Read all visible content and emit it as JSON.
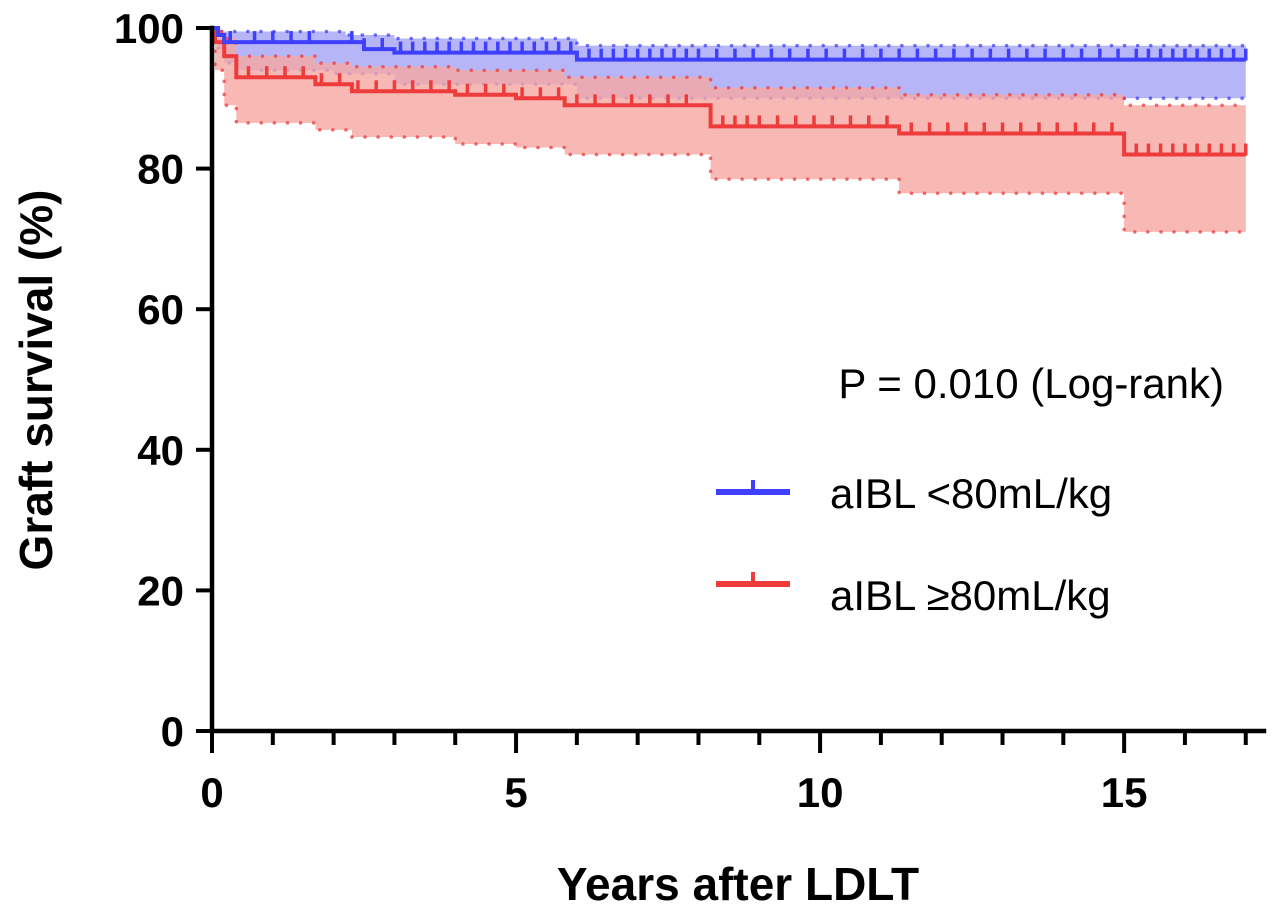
{
  "chart_data": {
    "type": "line",
    "subtype": "kaplan-meier",
    "title": "",
    "xlabel": "Years after LDLT",
    "ylabel": "Graft survival (%)",
    "xlim": [
      0,
      17.3
    ],
    "ylim": [
      0,
      100
    ],
    "xticks": [
      0,
      5,
      10,
      15
    ],
    "xticklabels": [
      "0",
      "5",
      "10",
      "15"
    ],
    "x_minor_step": 1,
    "yticks": [
      0,
      20,
      40,
      60,
      80,
      100
    ],
    "yticklabels": [
      "0",
      "20",
      "40",
      "60",
      "80",
      "100"
    ],
    "grid": false,
    "legend_position": "right",
    "annotation": "P = 0.010 (Log-rank)",
    "series": [
      {
        "name": "aIBL <80mL/kg",
        "color": "#3f3fff",
        "ci_fill": "#9c9cf6",
        "survival": [
          [
            0,
            100
          ],
          [
            0.1,
            99
          ],
          [
            0.2,
            98
          ],
          [
            2.2,
            98
          ],
          [
            2.5,
            97
          ],
          [
            3.0,
            96.5
          ],
          [
            6.0,
            95.5
          ],
          [
            15.0,
            95.5
          ],
          [
            17.0,
            95.5
          ]
        ],
        "ci_upper": [
          [
            0,
            100
          ],
          [
            0.1,
            99.5
          ],
          [
            0.2,
            99.5
          ],
          [
            2.2,
            99
          ],
          [
            3.0,
            98.5
          ],
          [
            6.0,
            97.5
          ],
          [
            17.0,
            97.5
          ]
        ],
        "ci_lower": [
          [
            0,
            100
          ],
          [
            0.1,
            97
          ],
          [
            0.2,
            95
          ],
          [
            0.4,
            94
          ],
          [
            1.0,
            94
          ],
          [
            2.0,
            93.5
          ],
          [
            3.0,
            92
          ],
          [
            6.0,
            90
          ],
          [
            17.0,
            89.5
          ]
        ],
        "censored": [
          0.3,
          0.7,
          1.0,
          1.3,
          1.6,
          2.3,
          2.5,
          2.8,
          3.1,
          3.3,
          3.5,
          3.7,
          3.9,
          4.1,
          4.3,
          4.5,
          4.7,
          4.9,
          5.1,
          5.3,
          5.5,
          5.7,
          5.9,
          6.2,
          6.4,
          6.6,
          6.8,
          7.0,
          7.2,
          7.4,
          7.6,
          7.8,
          8.0,
          8.3,
          8.6,
          8.9,
          9.2,
          9.5,
          9.8,
          10.1,
          10.4,
          10.7,
          11.0,
          11.3,
          11.6,
          11.9,
          12.2,
          12.5,
          12.8,
          13.1,
          13.4,
          13.7,
          14.0,
          14.3,
          14.6,
          14.9,
          15.2,
          15.4,
          15.6,
          15.8,
          16.0,
          16.2,
          16.4,
          16.6,
          16.8,
          17.0
        ]
      },
      {
        "name": "aIBL ≥80mL/kg",
        "color": "#ee3b3b",
        "ci_fill": "#f6a8a3",
        "survival": [
          [
            0,
            100
          ],
          [
            0.05,
            98
          ],
          [
            0.2,
            96
          ],
          [
            0.4,
            93
          ],
          [
            1.7,
            92
          ],
          [
            2.3,
            91
          ],
          [
            4.0,
            90.5
          ],
          [
            5.0,
            90
          ],
          [
            5.8,
            89
          ],
          [
            8.2,
            86
          ],
          [
            11.3,
            85
          ],
          [
            15.0,
            82
          ],
          [
            17.0,
            82
          ]
        ],
        "ci_upper": [
          [
            0,
            100
          ],
          [
            0.05,
            99.5
          ],
          [
            0.2,
            98.5
          ],
          [
            0.4,
            96
          ],
          [
            1.7,
            95
          ],
          [
            2.3,
            94.5
          ],
          [
            4.0,
            94
          ],
          [
            5.8,
            93
          ],
          [
            8.2,
            91.5
          ],
          [
            11.3,
            90.5
          ],
          [
            15.0,
            89
          ],
          [
            17.0,
            89
          ]
        ],
        "ci_lower": [
          [
            0,
            100
          ],
          [
            0.05,
            94
          ],
          [
            0.2,
            89
          ],
          [
            0.4,
            86.5
          ],
          [
            1.7,
            85.5
          ],
          [
            2.3,
            84.5
          ],
          [
            4.0,
            83.5
          ],
          [
            5.0,
            83
          ],
          [
            5.8,
            82
          ],
          [
            8.2,
            78.5
          ],
          [
            11.3,
            76.5
          ],
          [
            15.0,
            71
          ],
          [
            17.0,
            71
          ]
        ],
        "censored": [
          0.6,
          0.9,
          1.2,
          1.5,
          1.8,
          2.1,
          2.4,
          2.7,
          3.0,
          3.3,
          3.6,
          3.9,
          4.2,
          4.5,
          4.8,
          5.1,
          5.4,
          5.7,
          6.0,
          6.3,
          6.6,
          6.9,
          7.2,
          7.5,
          7.8,
          8.4,
          8.6,
          8.8,
          9.0,
          9.3,
          9.6,
          9.9,
          10.2,
          10.5,
          10.8,
          11.1,
          11.5,
          11.8,
          12.1,
          12.4,
          12.7,
          13.0,
          13.3,
          13.6,
          13.9,
          14.2,
          14.5,
          14.8,
          15.2,
          15.4,
          15.6,
          15.8,
          16.0,
          16.2,
          16.4,
          16.6,
          16.8,
          17.0
        ]
      }
    ]
  }
}
